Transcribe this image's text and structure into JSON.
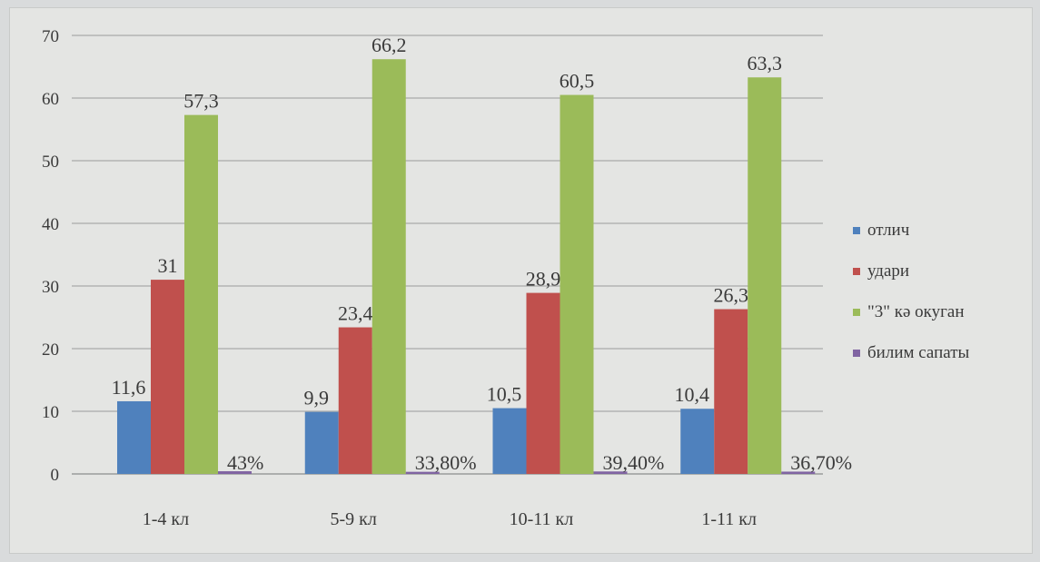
{
  "chart_data": {
    "type": "bar",
    "categories": [
      "1-4 кл",
      "5-9 кл",
      "10-11 кл",
      "1-11 кл"
    ],
    "ylim": [
      0,
      70
    ],
    "yticks": [
      0,
      10,
      20,
      30,
      40,
      50,
      60,
      70
    ],
    "grid": true,
    "legend_position": "right",
    "series": [
      {
        "name": "отлич",
        "color": "#4f81bd",
        "values": [
          11.6,
          9.9,
          10.5,
          10.4
        ],
        "labels": [
          "11,6",
          "9,9",
          "10,5",
          "10,4"
        ]
      },
      {
        "name": "удари",
        "color": "#c0504d",
        "values": [
          31,
          23.4,
          28.9,
          26.3
        ],
        "labels": [
          "31",
          "23,4",
          "28,9",
          "26,3"
        ]
      },
      {
        "name": "\"3\" кә окуган",
        "color": "#9bbb59",
        "values": [
          57.3,
          66.2,
          60.5,
          63.3
        ],
        "labels": [
          "57,3",
          "66,2",
          "60,5",
          "63,3"
        ]
      },
      {
        "name": "билим сапаты",
        "color": "#8064a2",
        "values": [
          0.43,
          0.338,
          0.394,
          0.367
        ],
        "labels": [
          "43%",
          "33,80%",
          "39,40%",
          "36,70%"
        ]
      }
    ]
  }
}
